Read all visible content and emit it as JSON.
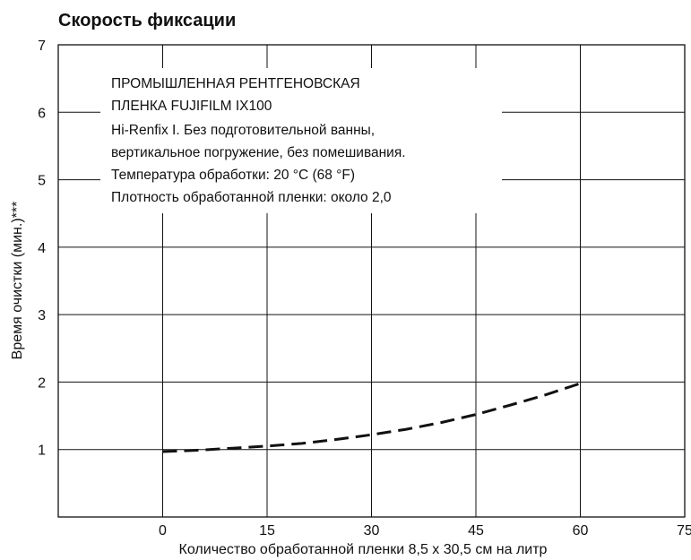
{
  "chart_data": {
    "type": "line",
    "title": "Скорость фиксации",
    "xlabel": "Количество обработанной пленки 8,5 x 30,5 см на литр",
    "ylabel": "Время очистки (мин.)***",
    "xlim": [
      -15,
      75
    ],
    "ylim": [
      0,
      7
    ],
    "x_ticks": [
      "0",
      "15",
      "30",
      "45",
      "60",
      "75"
    ],
    "y_ticks": [
      "1",
      "2",
      "3",
      "4",
      "5",
      "6",
      "7"
    ],
    "grid": true,
    "series": [
      {
        "style": "dashed",
        "color": "#111111",
        "x": [
          0,
          5,
          10,
          15,
          20,
          25,
          30,
          35,
          40,
          45,
          50,
          55,
          60
        ],
        "y": [
          0.97,
          0.99,
          1.02,
          1.05,
          1.09,
          1.15,
          1.22,
          1.3,
          1.4,
          1.52,
          1.66,
          1.81,
          1.98
        ]
      }
    ],
    "annotation": [
      "ПРОМЫШЛЕННАЯ РЕНТГЕНОВСКАЯ",
      "ПЛЕНКА FUJIFILM IX100",
      "Hi-Renfix I. Без подготовительной ванны,",
      "вертикальное погружение, без помешивания.",
      "Температура обработки: 20 °C (68 °F)",
      "Плотность обработанной пленки: около 2,0"
    ]
  }
}
